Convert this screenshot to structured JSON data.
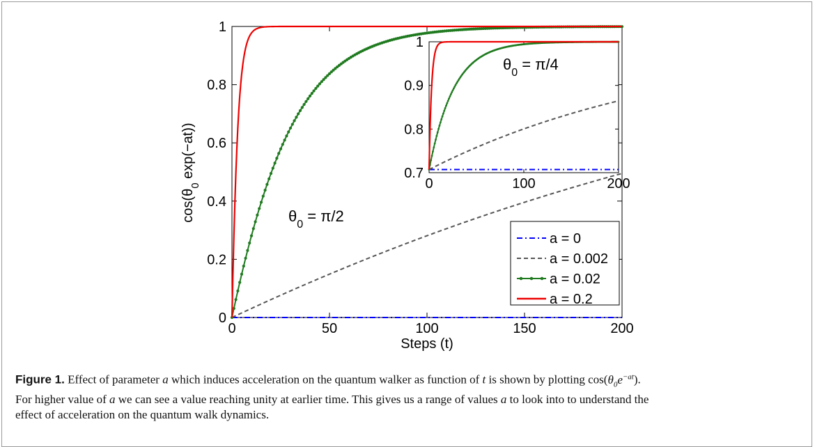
{
  "chart_data": [
    {
      "type": "line",
      "title": "",
      "xlabel": "Steps (t)",
      "ylabel": "cos(θ0 exp(−at))",
      "xlim": [
        0,
        200
      ],
      "ylim": [
        0,
        1
      ],
      "xticks": [
        "0",
        "50",
        "100",
        "150",
        "200"
      ],
      "yticks": [
        "0",
        "0.2",
        "0.4",
        "0.6",
        "0.8",
        "1"
      ],
      "annotation": "θ0 = π/2",
      "theta0": "π/2",
      "legend_position": "lower-right",
      "series": [
        {
          "name": "a = 0",
          "a": 0,
          "color": "#0000ff",
          "style": "dash-dot"
        },
        {
          "name": "a = 0.002",
          "a": 0.002,
          "color": "#555555",
          "style": "dashed"
        },
        {
          "name": "a = 0.02",
          "a": 0.02,
          "color": "#1f7a1f",
          "style": "dotted-markers"
        },
        {
          "name": "a = 0.2",
          "a": 0.2,
          "color": "#ee0000",
          "style": "solid"
        }
      ]
    },
    {
      "type": "line",
      "title": "",
      "inset": true,
      "xlim": [
        0,
        200
      ],
      "ylim": [
        0.7,
        1
      ],
      "xticks": [
        "0",
        "100",
        "200"
      ],
      "yticks": [
        "0.7",
        "0.8",
        "0.9",
        "1"
      ],
      "annotation": "θ0 = π/4",
      "theta0": "π/4",
      "series": [
        {
          "name": "a = 0",
          "a": 0,
          "color": "#0000ff",
          "style": "dash-dot"
        },
        {
          "name": "a = 0.002",
          "a": 0.002,
          "color": "#555555",
          "style": "dashed"
        },
        {
          "name": "a = 0.02",
          "a": 0.02,
          "color": "#1f7a1f",
          "style": "dotted-markers"
        },
        {
          "name": "a = 0.2",
          "a": 0.2,
          "color": "#ee0000",
          "style": "solid"
        }
      ]
    }
  ],
  "caption": {
    "label": "Figure 1.",
    "line1_a": " Effect of parameter ",
    "var_a": "a",
    "line1_b": " which induces acceleration on the quantum walker as function of ",
    "var_t": "t",
    "line1_c": " is shown by plotting cos(",
    "formula": "θ0e−at",
    "line1_d": ").",
    "line2_a": "For higher value of ",
    "line2_b": " we can see a value reaching unity at earlier time. This gives us a range of values ",
    "line2_c": " to look into to understand the",
    "line3": "effect of acceleration on the quantum walk dynamics."
  }
}
